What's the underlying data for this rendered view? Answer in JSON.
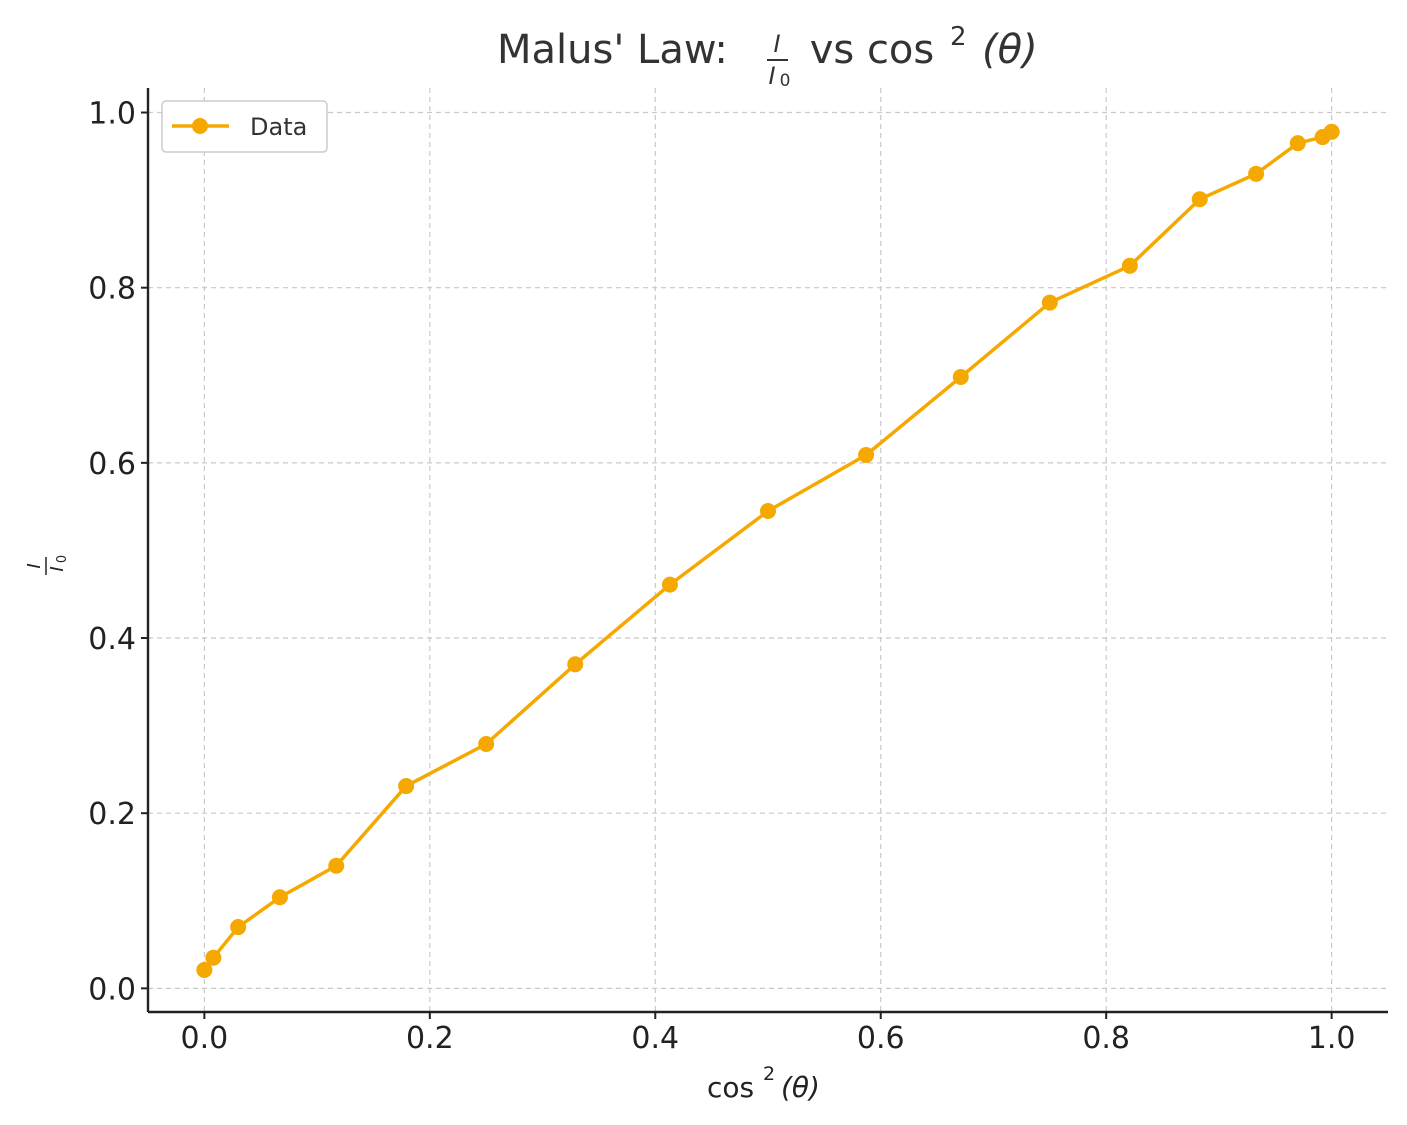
{
  "chart_data": {
    "type": "line",
    "title": "Malus' Law: I/I₀ vs cos²(θ)",
    "title_parts": {
      "prefix": "Malus' Law: ",
      "frac_num": "I",
      "frac_den": "I",
      "frac_den_sub": "0",
      "middle": " vs cos",
      "sup": "2",
      "suffix": "(θ)"
    },
    "xlabel": "cos²(θ)",
    "xlabel_parts": {
      "base": "cos",
      "sup": "2",
      "arg": "(θ)"
    },
    "ylabel": "I/I₀",
    "ylabel_parts": {
      "num": "I",
      "den": "I",
      "den_sub": "0"
    },
    "xlim": [
      -0.05,
      1.05
    ],
    "ylim": [
      -0.027,
      1.028
    ],
    "xticks": [
      0.0,
      0.2,
      0.4,
      0.6,
      0.8,
      1.0
    ],
    "xtick_labels": [
      "0.0",
      "0.2",
      "0.4",
      "0.6",
      "0.8",
      "1.0"
    ],
    "yticks": [
      0.0,
      0.2,
      0.4,
      0.6,
      0.8,
      1.0
    ],
    "ytick_labels": [
      "0.0",
      "0.2",
      "0.4",
      "0.6",
      "0.8",
      "1.0"
    ],
    "grid": true,
    "legend_position": "top-left",
    "series": [
      {
        "name": "Data",
        "color": "#f5a800",
        "marker": "circle",
        "x": [
          0.0,
          0.008,
          0.03,
          0.067,
          0.117,
          0.179,
          0.25,
          0.329,
          0.413,
          0.5,
          0.587,
          0.671,
          0.75,
          0.821,
          0.883,
          0.933,
          0.97,
          0.992,
          1.0
        ],
        "y": [
          0.021,
          0.035,
          0.07,
          0.104,
          0.14,
          0.231,
          0.279,
          0.37,
          0.461,
          0.545,
          0.609,
          0.698,
          0.783,
          0.825,
          0.901,
          0.93,
          0.965,
          0.972,
          0.978
        ]
      }
    ]
  }
}
